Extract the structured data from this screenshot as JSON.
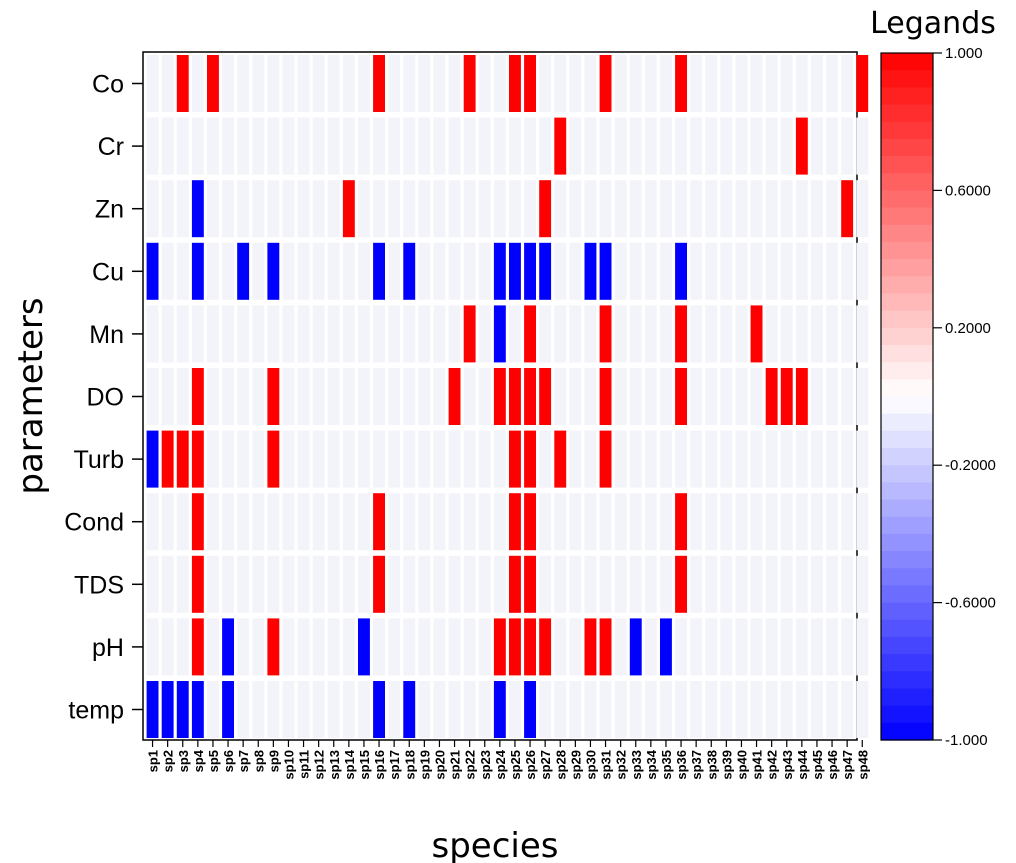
{
  "chart_data": {
    "type": "heatmap",
    "xlabel": "species",
    "ylabel": "parameters",
    "legend_title": "Legands",
    "x": [
      "sp1",
      "sp2",
      "sp3",
      "sp4",
      "sp5",
      "sp6",
      "sp7",
      "sp8",
      "sp9",
      "sp10",
      "sp11",
      "sp12",
      "sp13",
      "sp14",
      "sp15",
      "sp16",
      "sp17",
      "sp18",
      "sp19",
      "sp20",
      "sp21",
      "sp22",
      "sp23",
      "sp24",
      "sp25",
      "sp26",
      "sp27",
      "sp28",
      "sp29",
      "sp30",
      "sp31",
      "sp32",
      "sp33",
      "sp34",
      "sp35",
      "sp36",
      "sp37",
      "sp38",
      "sp39",
      "sp40",
      "sp41",
      "sp42",
      "sp43",
      "sp44",
      "sp45",
      "sp46",
      "sp47",
      "sp48"
    ],
    "y": [
      "Co",
      "Cr",
      "Zn",
      "Cu",
      "Mn",
      "DO",
      "Turb",
      "Cond",
      "TDS",
      "pH",
      "temp"
    ],
    "color_range": [
      -1,
      1
    ],
    "colorbar_ticks": [
      "1.000",
      "0.6000",
      "0.2000",
      "-0.2000",
      "-0.6000",
      "-1.000"
    ],
    "colors": {
      "positive": "#ff0000",
      "negative": "#0000ff",
      "neutral": "#f3f3fa"
    },
    "positive_cells": {
      "Co": [
        "sp3",
        "sp5",
        "sp16",
        "sp22",
        "sp25",
        "sp26",
        "sp31",
        "sp36",
        "sp48"
      ],
      "Cr": [
        "sp28",
        "sp44"
      ],
      "Zn": [
        "sp14",
        "sp27",
        "sp47"
      ],
      "Cu": [],
      "Mn": [
        "sp22",
        "sp26",
        "sp31",
        "sp36",
        "sp41"
      ],
      "DO": [
        "sp4",
        "sp9",
        "sp21",
        "sp24",
        "sp25",
        "sp26",
        "sp27",
        "sp31",
        "sp36",
        "sp42",
        "sp43",
        "sp44"
      ],
      "Turb": [
        "sp2",
        "sp3",
        "sp4",
        "sp9",
        "sp25",
        "sp26",
        "sp28",
        "sp31"
      ],
      "Cond": [
        "sp4",
        "sp16",
        "sp25",
        "sp26",
        "sp36"
      ],
      "TDS": [
        "sp4",
        "sp16",
        "sp25",
        "sp26",
        "sp36"
      ],
      "pH": [
        "sp4",
        "sp9",
        "sp24",
        "sp25",
        "sp26",
        "sp27",
        "sp30",
        "sp31"
      ],
      "temp": []
    },
    "negative_cells": {
      "Co": [],
      "Cr": [],
      "Zn": [
        "sp4"
      ],
      "Cu": [
        "sp1",
        "sp4",
        "sp7",
        "sp9",
        "sp16",
        "sp18",
        "sp24",
        "sp25",
        "sp26",
        "sp27",
        "sp30",
        "sp31",
        "sp36"
      ],
      "Mn": [
        "sp24"
      ],
      "DO": [],
      "Turb": [
        "sp1"
      ],
      "Cond": [],
      "TDS": [],
      "pH": [
        "sp6",
        "sp15",
        "sp33",
        "sp35"
      ],
      "temp": [
        "sp1",
        "sp2",
        "sp3",
        "sp4",
        "sp6",
        "sp16",
        "sp18",
        "sp24",
        "sp26"
      ]
    }
  }
}
